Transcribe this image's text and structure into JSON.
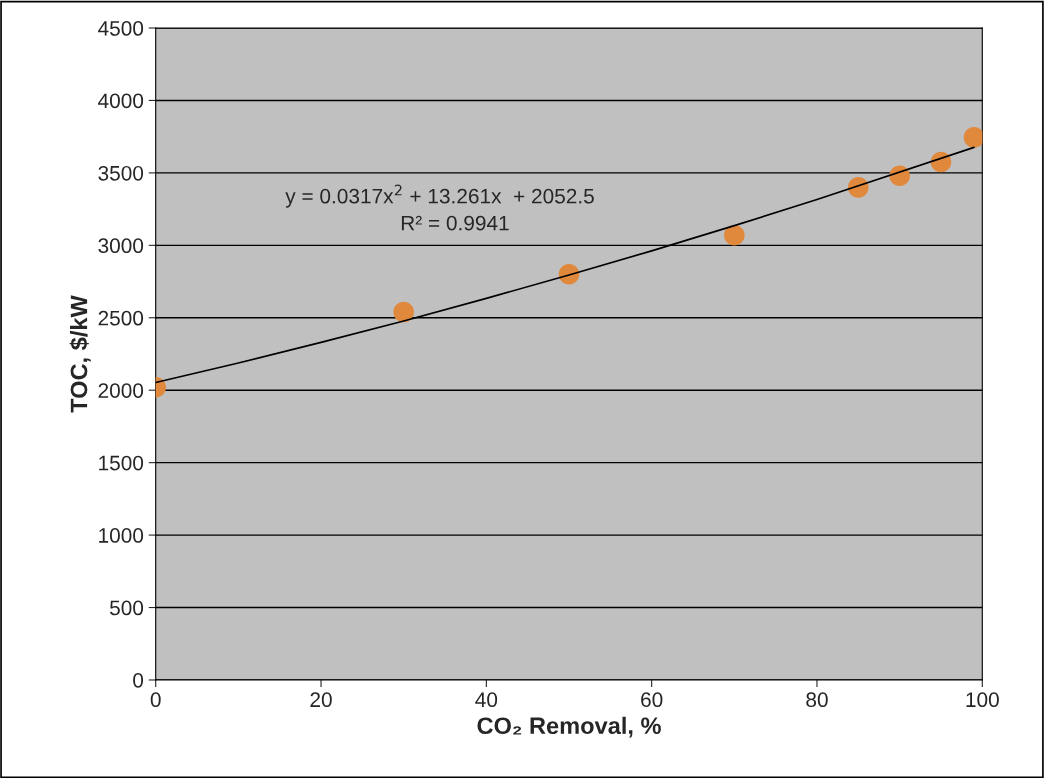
{
  "chart_data": {
    "type": "scatter",
    "xlabel": "CO₂ Removal, %",
    "ylabel": "TOC, $/kW",
    "x": [
      0,
      30,
      50,
      70,
      85,
      90,
      95,
      99
    ],
    "series": [
      {
        "color": "#e0883c",
        "values": [
          2020,
          2540,
          2800,
          3070,
          3400,
          3480,
          3575,
          3745
        ],
        "marker": "circle"
      },
      {
        "type": "line",
        "color": "#000000",
        "x": [
          0,
          10,
          20,
          30,
          40,
          50,
          60,
          70,
          80,
          99
        ],
        "values": [
          2053,
          2188,
          2330,
          2478,
          2634,
          2795,
          2962,
          3136,
          3316,
          3676
        ],
        "marker": "none",
        "line_style": "solid"
      }
    ],
    "annotations": [
      "y = 0.0317x$^{2}$ + 13.261x  + 2052.5",
      "R² = 0.9941"
    ],
    "xlim": [
      0,
      100
    ],
    "xticks": [
      0,
      20,
      40,
      60,
      80,
      100
    ],
    "ylim": [
      0,
      4500
    ],
    "yticks": [
      0,
      500,
      1000,
      1500,
      2000,
      2500,
      3000,
      3500,
      4000,
      4500
    ],
    "grid": "y",
    "legend": false
  }
}
